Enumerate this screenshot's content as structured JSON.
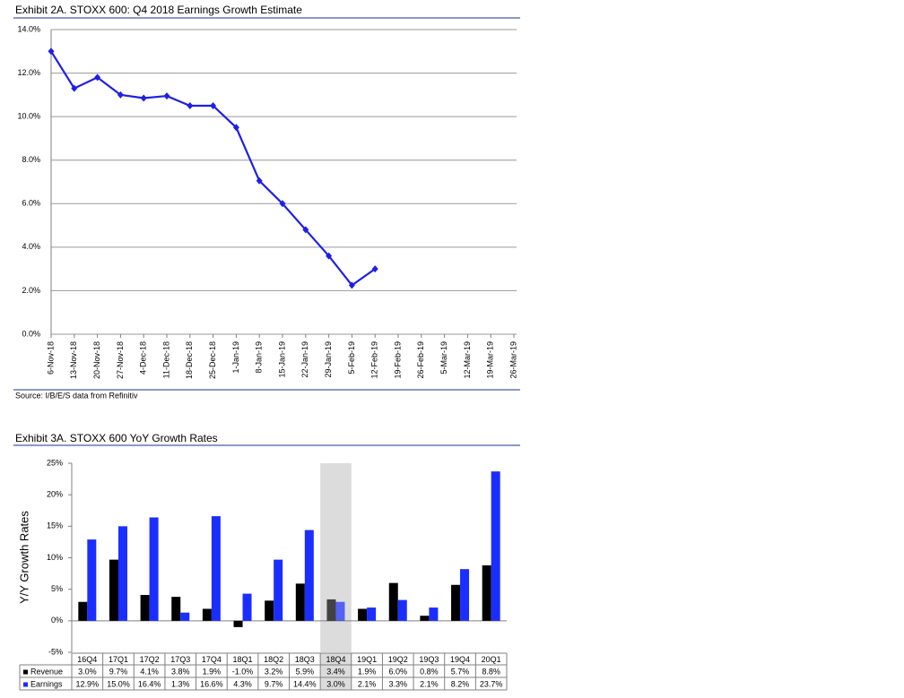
{
  "chart_data": [
    {
      "type": "line",
      "title": "Exhibit 2A.  STOXX 600: Q4 2018 Earnings Growth Estimate",
      "source": "Source: I/B/E/S data from Refinitiv",
      "categories": [
        "6-Nov-18",
        "13-Nov-18",
        "20-Nov-18",
        "27-Nov-18",
        "4-Dec-18",
        "11-Dec-18",
        "18-Dec-18",
        "25-Dec-18",
        "1-Jan-19",
        "8-Jan-19",
        "15-Jan-19",
        "22-Jan-19",
        "29-Jan-19",
        "5-Feb-19",
        "12-Feb-19",
        "19-Feb-19",
        "26-Feb-19",
        "5-Mar-19",
        "12-Mar-19",
        "19-Mar-19",
        "26-Mar-19"
      ],
      "values": [
        13.0,
        11.3,
        11.8,
        11.0,
        10.85,
        10.95,
        10.5,
        10.5,
        9.5,
        7.05,
        6.0,
        4.8,
        3.6,
        2.25,
        3.0,
        null,
        null,
        null,
        null,
        null,
        null
      ],
      "color": "#1f1fe6",
      "ylim": [
        0,
        14
      ],
      "yticks": [
        {
          "value": 0,
          "label": "0.0%"
        },
        {
          "value": 2,
          "label": "2.0%"
        },
        {
          "value": 4,
          "label": "4.0%"
        },
        {
          "value": 6,
          "label": "6.0%"
        },
        {
          "value": 8,
          "label": "8.0%"
        },
        {
          "value": 10,
          "label": "10.0%"
        },
        {
          "value": 12,
          "label": "12.0%"
        },
        {
          "value": 14,
          "label": "14.0%"
        }
      ],
      "grid": true
    },
    {
      "type": "bar",
      "title": "Exhibit 3A.  STOXX 600 YoY Growth Rates",
      "y_label": "Y/Y Growth Rates",
      "categories": [
        "16Q4",
        "17Q1",
        "17Q2",
        "17Q3",
        "17Q4",
        "18Q1",
        "18Q2",
        "18Q3",
        "18Q4",
        "19Q1",
        "19Q2",
        "19Q3",
        "19Q4",
        "20Q1"
      ],
      "series": [
        {
          "name": "Revenue",
          "color": "#000000",
          "values": [
            3.0,
            9.7,
            4.1,
            3.8,
            1.9,
            -1.0,
            3.2,
            5.9,
            3.4,
            1.9,
            6.0,
            0.8,
            5.7,
            8.8
          ],
          "value_labels": [
            "3.0%",
            "9.7%",
            "4.1%",
            "3.8%",
            "1.9%",
            "-1.0%",
            "3.2%",
            "5.9%",
            "3.4%",
            "1.9%",
            "6.0%",
            "0.8%",
            "5.7%",
            "8.8%"
          ]
        },
        {
          "name": "Earnings",
          "color": "#1a2eff",
          "values": [
            12.9,
            15.0,
            16.4,
            1.3,
            16.6,
            4.3,
            9.7,
            14.4,
            3.0,
            2.1,
            3.3,
            2.1,
            8.2,
            23.7
          ],
          "value_labels": [
            "12.9%",
            "15.0%",
            "16.4%",
            "1.3%",
            "16.6%",
            "4.3%",
            "9.7%",
            "14.4%",
            "3.0%",
            "2.1%",
            "3.3%",
            "2.1%",
            "8.2%",
            "23.7%"
          ]
        }
      ],
      "highlight": 8,
      "ylim": [
        -5,
        25
      ],
      "yticks": [
        {
          "value": -5,
          "label": "-5%"
        },
        {
          "value": 0,
          "label": "0%"
        },
        {
          "value": 5,
          "label": "5%"
        },
        {
          "value": 10,
          "label": "10%"
        },
        {
          "value": 15,
          "label": "15%"
        },
        {
          "value": 20,
          "label": "20%"
        },
        {
          "value": 25,
          "label": "25%"
        }
      ],
      "grid": false
    }
  ]
}
